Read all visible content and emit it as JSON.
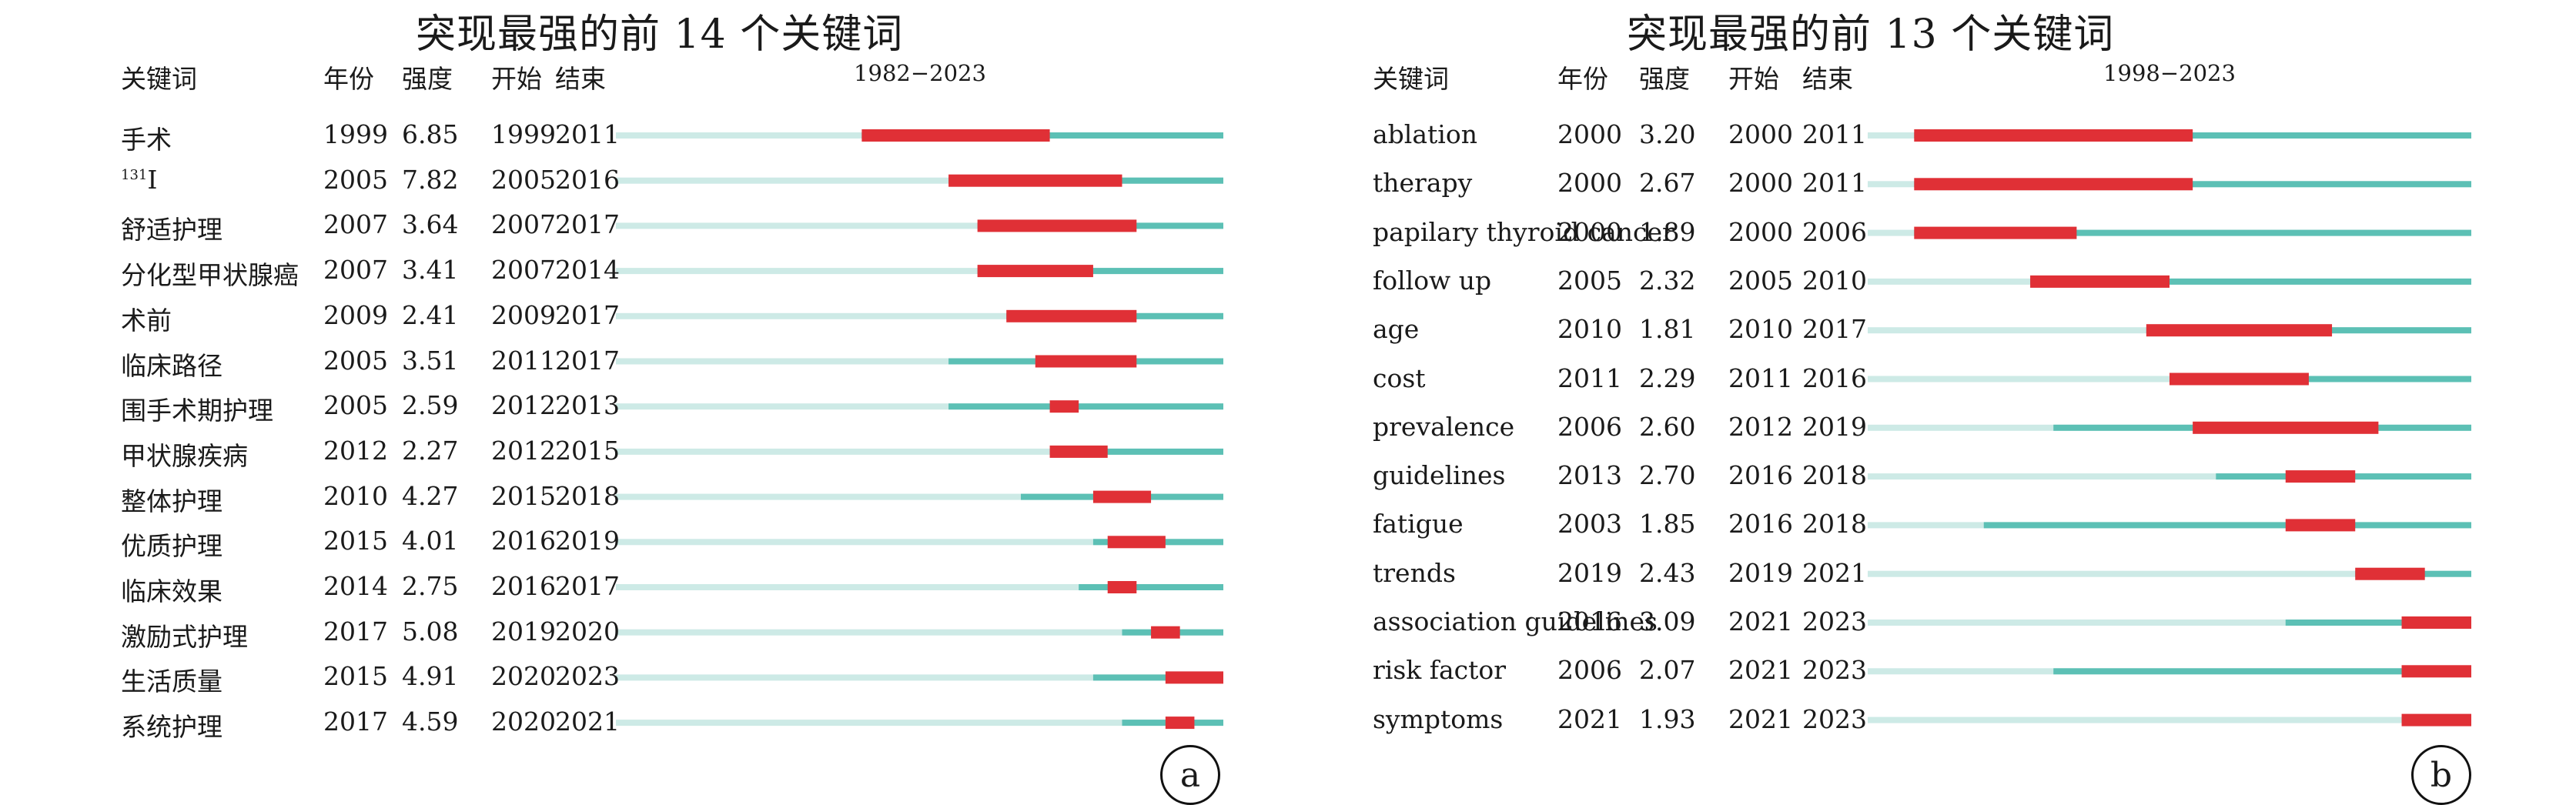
{
  "colors": {
    "outside": "#cdeae6",
    "active": "#5cc0b5",
    "burst": "#e03036",
    "text": "#1a1a1a"
  },
  "chart_data": [
    {
      "type": "bar",
      "title": "突现最强的前 14 个关键词",
      "range_label": "1982−2023",
      "xlim": [
        1982,
        2023
      ],
      "columns": [
        "关键词",
        "年份",
        "强度",
        "开始",
        "结束"
      ],
      "keywords": [
        {
          "keyword": "手术",
          "year": 1999,
          "strength": "6.85",
          "begin": 1999,
          "end": 2011
        },
        {
          "keyword": "I",
          "sup": "131",
          "year": 2005,
          "strength": "7.82",
          "begin": 2005,
          "end": 2016
        },
        {
          "keyword": "舒适护理",
          "year": 2007,
          "strength": "3.64",
          "begin": 2007,
          "end": 2017
        },
        {
          "keyword": "分化型甲状腺癌",
          "year": 2007,
          "strength": "3.41",
          "begin": 2007,
          "end": 2014
        },
        {
          "keyword": "术前",
          "year": 2009,
          "strength": "2.41",
          "begin": 2009,
          "end": 2017
        },
        {
          "keyword": "临床路径",
          "year": 2005,
          "strength": "3.51",
          "begin": 2011,
          "end": 2017
        },
        {
          "keyword": "围手术期护理",
          "year": 2005,
          "strength": "2.59",
          "begin": 2012,
          "end": 2013
        },
        {
          "keyword": "甲状腺疾病",
          "year": 2012,
          "strength": "2.27",
          "begin": 2012,
          "end": 2015
        },
        {
          "keyword": "整体护理",
          "year": 2010,
          "strength": "4.27",
          "begin": 2015,
          "end": 2018
        },
        {
          "keyword": "优质护理",
          "year": 2015,
          "strength": "4.01",
          "begin": 2016,
          "end": 2019
        },
        {
          "keyword": "临床效果",
          "year": 2014,
          "strength": "2.75",
          "begin": 2016,
          "end": 2017
        },
        {
          "keyword": "激励式护理",
          "year": 2017,
          "strength": "5.08",
          "begin": 2019,
          "end": 2020
        },
        {
          "keyword": "生活质量",
          "year": 2015,
          "strength": "4.91",
          "begin": 2020,
          "end": 2023
        },
        {
          "keyword": "系统护理",
          "year": 2017,
          "strength": "4.59",
          "begin": 2020,
          "end": 2021
        }
      ],
      "panel_label": "a"
    },
    {
      "type": "bar",
      "title": "突现最强的前 13 个关键词",
      "range_label": "1998−2023",
      "xlim": [
        1998,
        2023
      ],
      "columns": [
        "关键词",
        "年份",
        "强度",
        "开始",
        "结束"
      ],
      "keywords": [
        {
          "keyword": "ablation",
          "year": 2000,
          "strength": "3.20",
          "begin": 2000,
          "end": 2011
        },
        {
          "keyword": "therapy",
          "year": 2000,
          "strength": "2.67",
          "begin": 2000,
          "end": 2011
        },
        {
          "keyword": "papilary thyroid cancer",
          "year": 2000,
          "strength": "1.89",
          "begin": 2000,
          "end": 2006
        },
        {
          "keyword": "follow up",
          "year": 2005,
          "strength": "2.32",
          "begin": 2005,
          "end": 2010
        },
        {
          "keyword": "age",
          "year": 2010,
          "strength": "1.81",
          "begin": 2010,
          "end": 2017
        },
        {
          "keyword": "cost",
          "year": 2011,
          "strength": "2.29",
          "begin": 2011,
          "end": 2016
        },
        {
          "keyword": "prevalence",
          "year": 2006,
          "strength": "2.60",
          "begin": 2012,
          "end": 2019
        },
        {
          "keyword": "guidelines",
          "year": 2013,
          "strength": "2.70",
          "begin": 2016,
          "end": 2018
        },
        {
          "keyword": "fatigue",
          "year": 2003,
          "strength": "1.85",
          "begin": 2016,
          "end": 2018
        },
        {
          "keyword": "trends",
          "year": 2019,
          "strength": "2.43",
          "begin": 2019,
          "end": 2021
        },
        {
          "keyword": "association guidelines",
          "year": 2016,
          "strength": "3.09",
          "begin": 2021,
          "end": 2023
        },
        {
          "keyword": "risk factor",
          "year": 2006,
          "strength": "2.07",
          "begin": 2021,
          "end": 2023
        },
        {
          "keyword": "symptoms",
          "year": 2021,
          "strength": "1.93",
          "begin": 2021,
          "end": 2023
        }
      ],
      "panel_label": "b"
    }
  ]
}
